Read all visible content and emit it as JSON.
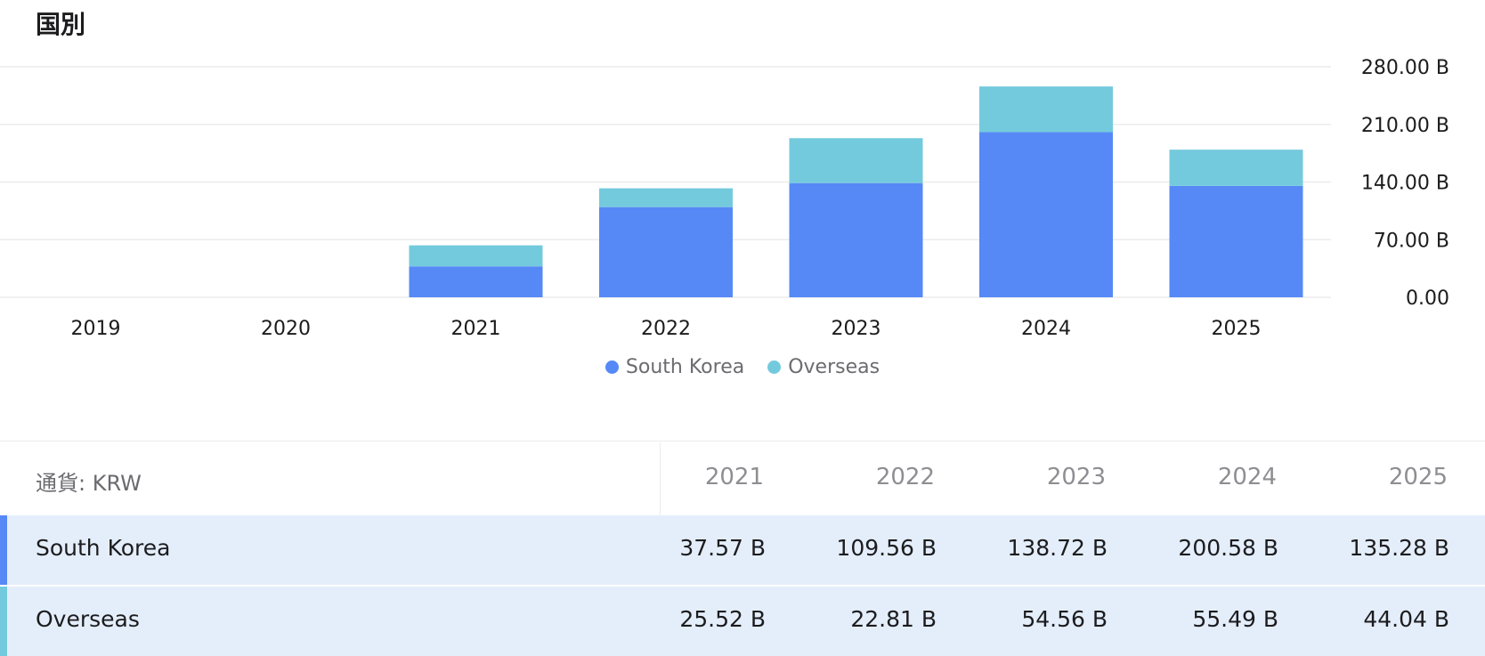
{
  "header": {
    "title": "国別"
  },
  "colors": {
    "south_korea": "#5689f6",
    "overseas": "#74cadd",
    "row_bg": "#e4eefb",
    "grid": "#ececee"
  },
  "chart_data": {
    "type": "bar",
    "stacked": true,
    "categories": [
      "2019",
      "2020",
      "2021",
      "2022",
      "2023",
      "2024",
      "2025"
    ],
    "series": [
      {
        "name": "South Korea",
        "values": [
          null,
          null,
          37.57,
          109.56,
          138.72,
          200.58,
          135.28
        ]
      },
      {
        "name": "Overseas",
        "values": [
          null,
          null,
          25.52,
          22.81,
          54.56,
          55.49,
          44.04
        ]
      }
    ],
    "y_ticks": [
      "280.00",
      "210.00",
      "140.00",
      "70.00",
      "0.00"
    ],
    "y_tick_values": [
      280,
      210,
      140,
      70,
      0
    ],
    "y_unit": "B",
    "ylim": [
      0,
      280
    ],
    "y_axis_side": "right",
    "grid": true,
    "legend_position": "bottom-center"
  },
  "legend": [
    {
      "label": "South Korea",
      "color": "#5689f6"
    },
    {
      "label": "Overseas",
      "color": "#74cadd"
    }
  ],
  "table": {
    "currency_label": "通貨: KRW",
    "years": [
      "2021",
      "2022",
      "2023",
      "2024",
      "2025"
    ],
    "rows": [
      {
        "label": "South Korea",
        "color": "#5689f6",
        "cells": [
          "37.57 B",
          "109.56 B",
          "138.72 B",
          "200.58 B",
          "135.28 B"
        ]
      },
      {
        "label": "Overseas",
        "color": "#74cadd",
        "cells": [
          "25.52 B",
          "22.81 B",
          "54.56 B",
          "55.49 B",
          "44.04 B"
        ]
      }
    ]
  }
}
